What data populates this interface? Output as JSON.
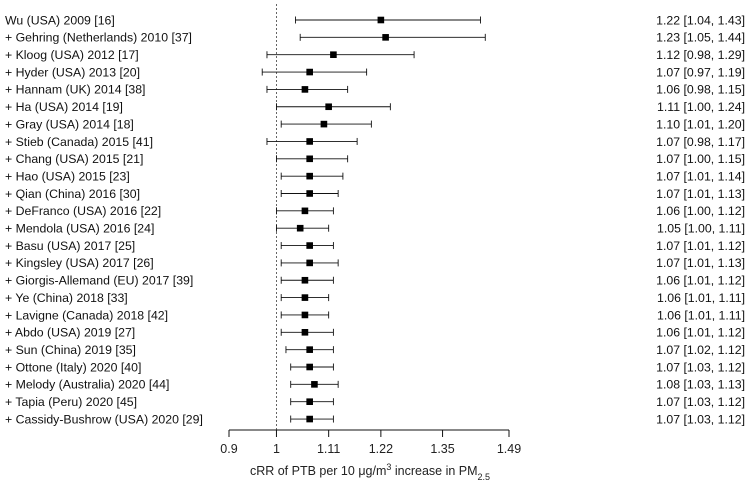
{
  "chart_data": {
    "type": "forest",
    "xlim": [
      0.9,
      1.49
    ],
    "x_ticks": [
      "0.9",
      "1",
      "1.11",
      "1.22",
      "1.35",
      "1.49"
    ],
    "reference_line": 1,
    "xlabel": {
      "prefix": "cRR of PTB per 10 ",
      "mu": "μ",
      "unit_mid": "g/m",
      "sup": "3",
      "mid": " increase in PM",
      "sub": "2.5"
    },
    "studies": [
      {
        "label": "Wu (USA) 2009 [16]",
        "est": 1.22,
        "lo": 1.04,
        "hi": 1.43,
        "text": "1.22 [1.04, 1.43]"
      },
      {
        "label": "+ Gehring (Netherlands) 2010 [37]",
        "est": 1.23,
        "lo": 1.05,
        "hi": 1.44,
        "text": "1.23 [1.05, 1.44]"
      },
      {
        "label": "+ Kloog (USA) 2012 [17]",
        "est": 1.12,
        "lo": 0.98,
        "hi": 1.29,
        "text": "1.12 [0.98, 1.29]"
      },
      {
        "label": "+ Hyder (USA) 2013 [20]",
        "est": 1.07,
        "lo": 0.97,
        "hi": 1.19,
        "text": "1.07 [0.97, 1.19]"
      },
      {
        "label": "+ Hannam (UK) 2014 [38]",
        "est": 1.06,
        "lo": 0.98,
        "hi": 1.15,
        "text": "1.06 [0.98, 1.15]"
      },
      {
        "label": "+ Ha (USA) 2014 [19]",
        "est": 1.11,
        "lo": 1.0,
        "hi": 1.24,
        "text": "1.11 [1.00, 1.24]"
      },
      {
        "label": "+ Gray (USA) 2014 [18]",
        "est": 1.1,
        "lo": 1.01,
        "hi": 1.2,
        "text": "1.10 [1.01, 1.20]"
      },
      {
        "label": "+ Stieb (Canada) 2015 [41]",
        "est": 1.07,
        "lo": 0.98,
        "hi": 1.17,
        "text": "1.07 [0.98, 1.17]"
      },
      {
        "label": "+ Chang (USA) 2015 [21]",
        "est": 1.07,
        "lo": 1.0,
        "hi": 1.15,
        "text": "1.07 [1.00, 1.15]"
      },
      {
        "label": "+ Hao (USA) 2015 [23]",
        "est": 1.07,
        "lo": 1.01,
        "hi": 1.14,
        "text": "1.07 [1.01, 1.14]"
      },
      {
        "label": "+ Qian (China) 2016 [30]",
        "est": 1.07,
        "lo": 1.01,
        "hi": 1.13,
        "text": "1.07 [1.01, 1.13]"
      },
      {
        "label": "+ DeFranco (USA) 2016 [22]",
        "est": 1.06,
        "lo": 1.0,
        "hi": 1.12,
        "text": "1.06 [1.00, 1.12]"
      },
      {
        "label": "+ Mendola (USA) 2016 [24]",
        "est": 1.05,
        "lo": 1.0,
        "hi": 1.11,
        "text": "1.05 [1.00, 1.11]"
      },
      {
        "label": "+ Basu (USA) 2017 [25]",
        "est": 1.07,
        "lo": 1.01,
        "hi": 1.12,
        "text": "1.07 [1.01, 1.12]"
      },
      {
        "label": "+ Kingsley (USA) 2017 [26]",
        "est": 1.07,
        "lo": 1.01,
        "hi": 1.13,
        "text": "1.07 [1.01, 1.13]"
      },
      {
        "label": "+ Giorgis-Allemand (EU) 2017 [39]",
        "est": 1.06,
        "lo": 1.01,
        "hi": 1.12,
        "text": "1.06 [1.01, 1.12]"
      },
      {
        "label": "+ Ye (China) 2018 [33]",
        "est": 1.06,
        "lo": 1.01,
        "hi": 1.11,
        "text": "1.06 [1.01, 1.11]"
      },
      {
        "label": "+ Lavigne (Canada) 2018 [42]",
        "est": 1.06,
        "lo": 1.01,
        "hi": 1.11,
        "text": "1.06 [1.01, 1.11]"
      },
      {
        "label": "+ Abdo (USA) 2019 [27]",
        "est": 1.06,
        "lo": 1.01,
        "hi": 1.12,
        "text": "1.06 [1.01, 1.12]"
      },
      {
        "label": "+ Sun (China) 2019 [35]",
        "est": 1.07,
        "lo": 1.02,
        "hi": 1.12,
        "text": "1.07 [1.02, 1.12]"
      },
      {
        "label": "+ Ottone (Italy) 2020 [40]",
        "est": 1.07,
        "lo": 1.03,
        "hi": 1.12,
        "text": "1.07 [1.03, 1.12]"
      },
      {
        "label": "+ Melody (Australia) 2020 [44]",
        "est": 1.08,
        "lo": 1.03,
        "hi": 1.13,
        "text": "1.08 [1.03, 1.13]"
      },
      {
        "label": "+ Tapia (Peru) 2020 [45]",
        "est": 1.07,
        "lo": 1.03,
        "hi": 1.12,
        "text": "1.07 [1.03, 1.12]"
      },
      {
        "label": "+ Cassidy-Bushrow (USA) 2020 [29]",
        "est": 1.07,
        "lo": 1.03,
        "hi": 1.12,
        "text": "1.07 [1.03, 1.12]"
      }
    ]
  }
}
